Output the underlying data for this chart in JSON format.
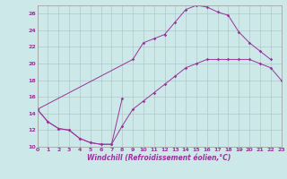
{
  "xlabel": "Windchill (Refroidissement éolien,°C)",
  "background_color": "#cce8e8",
  "grid_color": "#b0c8c8",
  "line_color": "#993399",
  "xlim": [
    0,
    23
  ],
  "ylim": [
    10,
    27
  ],
  "yticks": [
    10,
    12,
    14,
    16,
    18,
    20,
    22,
    24,
    26
  ],
  "xticks": [
    0,
    1,
    2,
    3,
    4,
    5,
    6,
    7,
    8,
    9,
    10,
    11,
    12,
    13,
    14,
    15,
    16,
    17,
    18,
    19,
    20,
    21,
    22,
    23
  ],
  "line1_x": [
    0,
    1,
    2,
    3,
    4,
    5,
    6,
    7,
    8
  ],
  "line1_y": [
    14.5,
    13.0,
    12.2,
    12.0,
    11.0,
    10.5,
    10.3,
    10.3,
    15.8
  ],
  "line2_x": [
    0,
    1,
    2,
    3,
    4,
    5,
    6,
    7,
    8,
    9,
    10,
    11,
    12,
    13,
    14,
    15,
    16,
    17,
    18,
    19,
    20,
    21,
    22,
    23
  ],
  "line2_y": [
    14.5,
    13.0,
    12.2,
    12.0,
    11.0,
    10.5,
    10.3,
    10.3,
    12.5,
    14.5,
    15.5,
    16.5,
    17.5,
    18.5,
    19.5,
    20.0,
    20.5,
    20.5,
    20.5,
    20.5,
    20.5,
    20.0,
    19.5,
    18.0
  ],
  "line3_x": [
    0,
    9,
    10,
    11,
    12,
    13,
    14,
    15,
    16,
    17,
    18,
    19,
    20,
    21,
    22
  ],
  "line3_y": [
    14.5,
    20.5,
    22.5,
    23.0,
    23.5,
    25.0,
    26.5,
    27.0,
    26.8,
    26.2,
    25.8,
    23.8,
    22.5,
    21.5,
    20.5
  ]
}
